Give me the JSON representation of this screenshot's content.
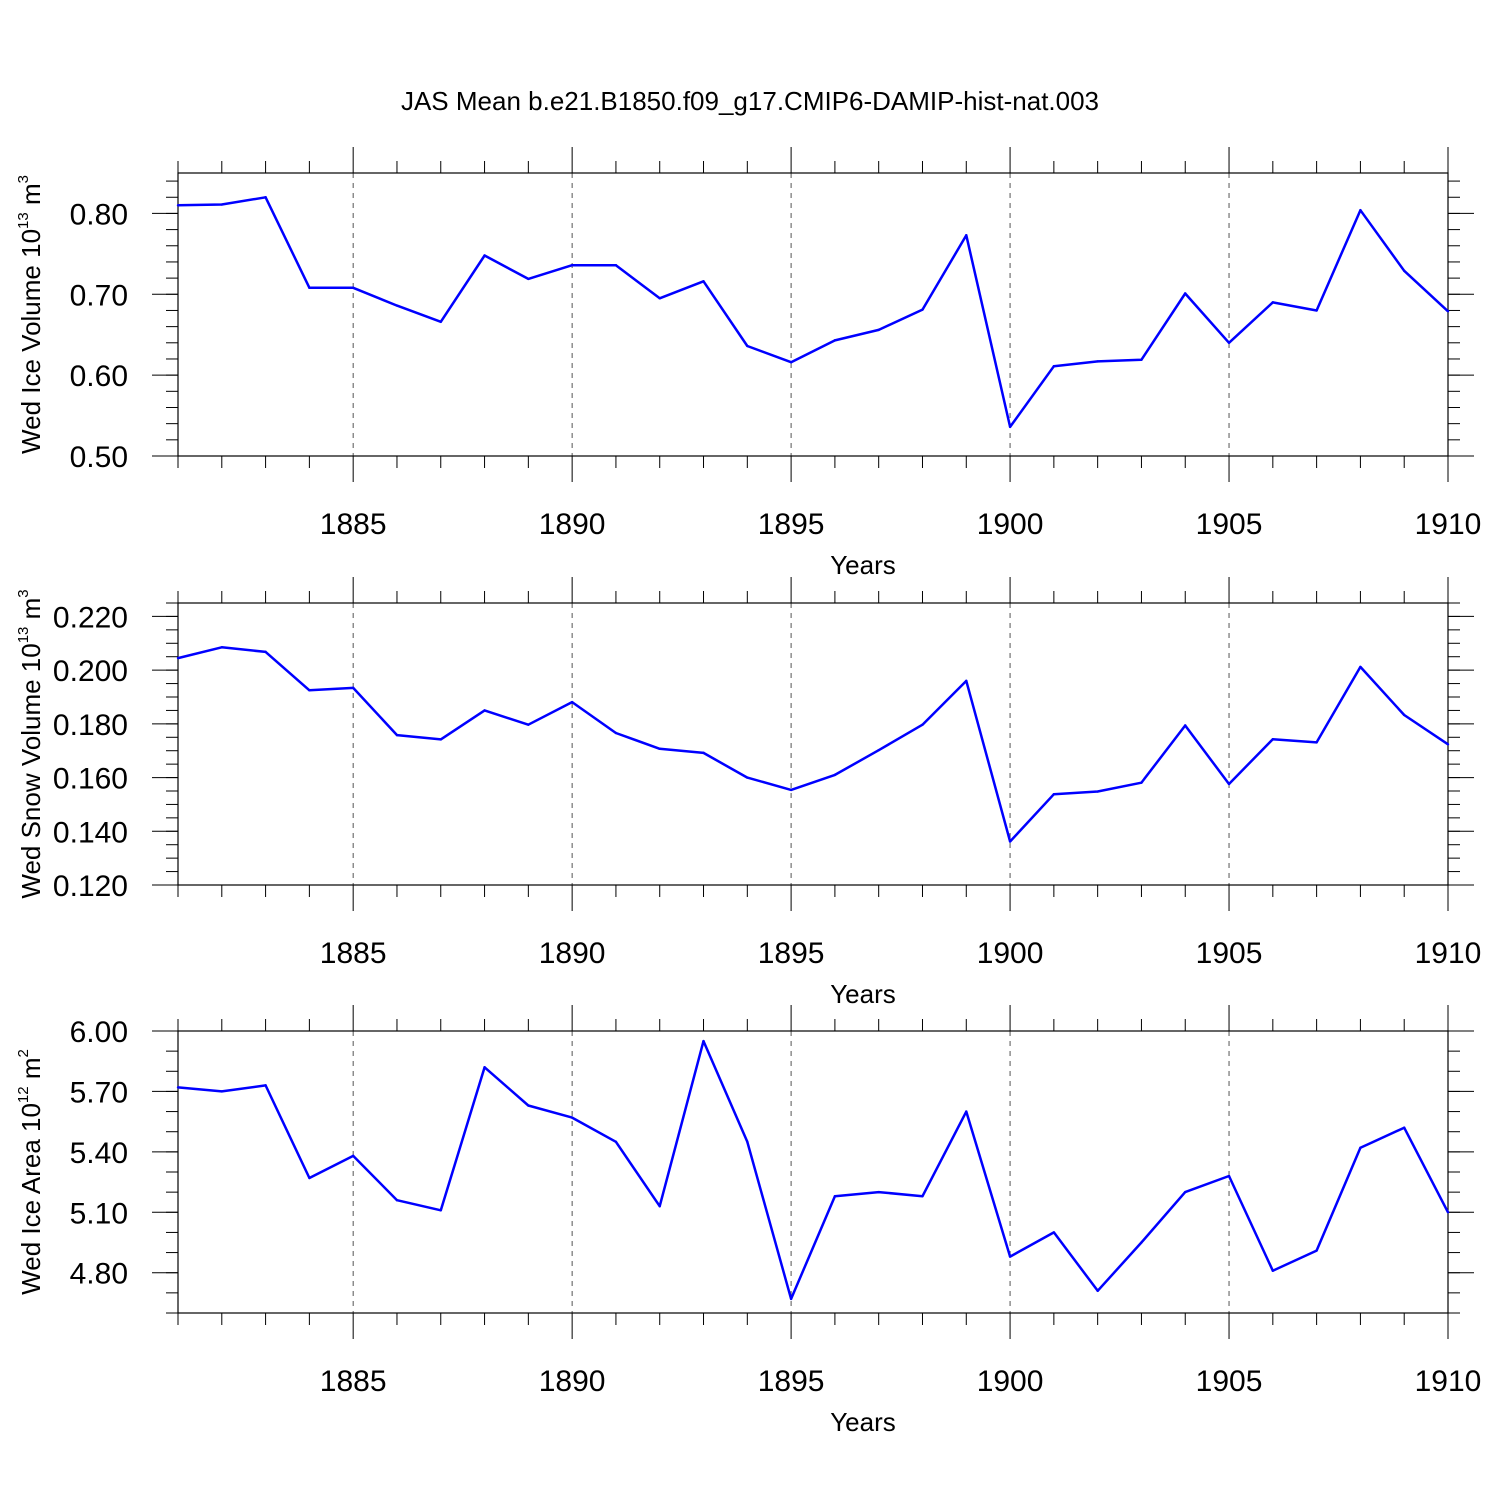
{
  "figure": {
    "title": "JAS Mean b.e21.B1850.f09_g17.CMIP6-DAMIP-hist-nat.003",
    "series_color": "#0000ff",
    "grid_color": "#555555"
  },
  "chart_data": [
    {
      "type": "line",
      "ylabel": {
        "main": "Wed Ice Volume 10",
        "exp": "13",
        "unit": " m",
        "unit_exp": "3"
      },
      "xlabel": "Years",
      "xlim": [
        1881,
        1910
      ],
      "ylim": [
        0.5,
        0.85
      ],
      "x_ticks": [
        1885,
        1890,
        1895,
        1900,
        1905,
        1910
      ],
      "y_ticks": [
        0.5,
        0.6,
        0.7,
        0.8
      ],
      "y_tick_labels": [
        "0.50",
        "0.60",
        "0.70",
        "0.80"
      ],
      "y_minor_step": 0.02,
      "grid": "dashed vertical lines at major x ticks",
      "x": [
        1881,
        1882,
        1883,
        1884,
        1885,
        1886,
        1887,
        1888,
        1889,
        1890,
        1891,
        1892,
        1893,
        1894,
        1895,
        1896,
        1897,
        1898,
        1899,
        1900,
        1901,
        1902,
        1903,
        1904,
        1905,
        1906,
        1907,
        1908,
        1909,
        1910
      ],
      "values": [
        0.81,
        0.811,
        0.82,
        0.708,
        0.708,
        0.686,
        0.666,
        0.748,
        0.719,
        0.736,
        0.736,
        0.695,
        0.716,
        0.636,
        0.616,
        0.643,
        0.656,
        0.681,
        0.773,
        0.536,
        0.611,
        0.617,
        0.619,
        0.701,
        0.64,
        0.69,
        0.68,
        0.804,
        0.729,
        0.679
      ]
    },
    {
      "type": "line",
      "ylabel": {
        "main": "Wed Snow Volume 10",
        "exp": "13",
        "unit": " m",
        "unit_exp": "3"
      },
      "xlabel": "Years",
      "xlim": [
        1881,
        1910
      ],
      "ylim": [
        0.12,
        0.225
      ],
      "x_ticks": [
        1885,
        1890,
        1895,
        1900,
        1905,
        1910
      ],
      "y_ticks": [
        0.12,
        0.14,
        0.16,
        0.18,
        0.2,
        0.22
      ],
      "y_tick_labels": [
        "0.120",
        "0.140",
        "0.160",
        "0.180",
        "0.200",
        "0.220"
      ],
      "y_minor_step": 0.005,
      "grid": "dashed vertical lines at major x ticks",
      "x": [
        1881,
        1882,
        1883,
        1884,
        1885,
        1886,
        1887,
        1888,
        1889,
        1890,
        1891,
        1892,
        1893,
        1894,
        1895,
        1896,
        1897,
        1898,
        1899,
        1900,
        1901,
        1902,
        1903,
        1904,
        1905,
        1906,
        1907,
        1908,
        1909,
        1910
      ],
      "values": [
        0.2045,
        0.2085,
        0.2068,
        0.1925,
        0.1934,
        0.1758,
        0.1742,
        0.185,
        0.1797,
        0.1881,
        0.1766,
        0.1707,
        0.1692,
        0.16,
        0.1554,
        0.161,
        0.1702,
        0.1797,
        0.196,
        0.1362,
        0.1538,
        0.1548,
        0.1581,
        0.1794,
        0.1576,
        0.1743,
        0.1731,
        0.2012,
        0.1833,
        0.1724
      ]
    },
    {
      "type": "line",
      "ylabel": {
        "main": "Wed Ice Area 10",
        "exp": "12",
        "unit": " m",
        "unit_exp": "2"
      },
      "xlabel": "Years",
      "xlim": [
        1881,
        1910
      ],
      "ylim": [
        4.6,
        6.0
      ],
      "x_ticks": [
        1885,
        1890,
        1895,
        1900,
        1905,
        1910
      ],
      "y_ticks": [
        4.8,
        5.1,
        5.4,
        5.7,
        6.0
      ],
      "y_tick_labels": [
        "4.80",
        "5.10",
        "5.40",
        "5.70",
        "6.00"
      ],
      "y_minor_step": 0.1,
      "grid": "dashed vertical lines at major x ticks",
      "x": [
        1881,
        1882,
        1883,
        1884,
        1885,
        1886,
        1887,
        1888,
        1889,
        1890,
        1891,
        1892,
        1893,
        1894,
        1895,
        1896,
        1897,
        1898,
        1899,
        1900,
        1901,
        1902,
        1903,
        1904,
        1905,
        1906,
        1907,
        1908,
        1909,
        1910
      ],
      "values": [
        5.72,
        5.7,
        5.73,
        5.27,
        5.38,
        5.16,
        5.11,
        5.82,
        5.63,
        5.57,
        5.45,
        5.13,
        5.95,
        5.45,
        4.67,
        5.18,
        5.2,
        5.18,
        5.6,
        4.88,
        5.0,
        4.71,
        4.95,
        5.2,
        5.28,
        4.81,
        4.91,
        5.42,
        5.52,
        5.1
      ]
    }
  ]
}
